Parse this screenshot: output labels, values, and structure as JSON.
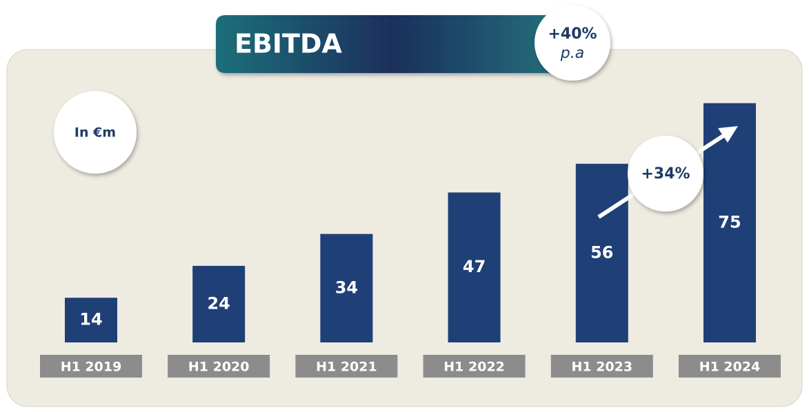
{
  "chart_data": {
    "type": "bar",
    "title": "EBITDA",
    "unit_label": "In €m",
    "growth_pa": {
      "value": "+40%",
      "period": "p.a"
    },
    "growth_last": "+34%",
    "categories": [
      "H1 2019",
      "H1 2020",
      "H1 2021",
      "H1 2022",
      "H1 2023",
      "H1 2024"
    ],
    "values": [
      14,
      24,
      34,
      47,
      56,
      75
    ],
    "color": "#1f3f77"
  }
}
